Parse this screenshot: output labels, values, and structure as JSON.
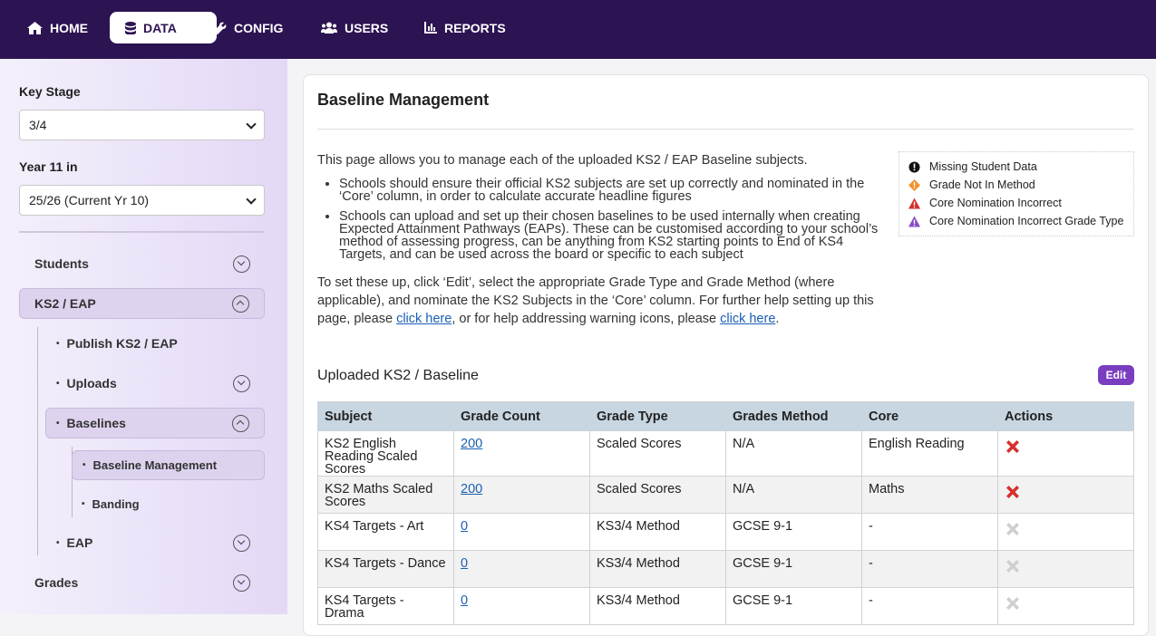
{
  "nav": [
    "HOME",
    "DATA",
    "CONFIG",
    "USERS",
    "REPORTS"
  ],
  "sidebar": {
    "key_stage_label": "Key Stage",
    "key_stage_value": "3/4",
    "year_label": "Year 11 in",
    "year_value": "25/26 (Current Yr 10)",
    "menu": [
      "Students",
      "KS2 / EAP",
      "Publish KS2 / EAP",
      "Uploads",
      "Baselines",
      "Baseline Management",
      "Banding",
      "EAP",
      "Grades"
    ]
  },
  "main": {
    "title": "Baseline Management",
    "intro": "This page allows you to manage each of the uploaded KS2 / EAP Baseline subjects.",
    "bullets": [
      "Schools should ensure their official KS2 subjects are set up correctly and nominated in the ‘Core’ column, in order to calculate accurate headline figures",
      "Schools can upload and set up their chosen baselines to be used internally when creating Expected Attainment Pathways (EAPs). These can be customised according to your school’s method of assessing progress, can be anything from KS2 starting points to End of KS4 Targets, and can be used across the board or specific to each subject"
    ],
    "help": [
      "To set these up, click ‘Edit’, select the appropriate Grade Type and Grade Method (where applicable), and nominate the KS2 Subjects in the ‘Core’ column. For further help setting up this page, please ",
      "click here",
      ", or for help addressing warning icons, please ",
      "click here",
      "."
    ],
    "legend": [
      "Missing Student Data",
      "Grade Not In Method",
      "Core Nomination Incorrect",
      "Core Nomination Incorrect Grade Type"
    ],
    "section_title": "Uploaded KS2 / Baseline",
    "edit": "Edit",
    "table": {
      "headers": [
        "Subject",
        "Grade Count",
        "Grade Type",
        "Grades Method",
        "Core",
        "Actions"
      ],
      "rows": [
        [
          "KS2 English Reading Scaled Scores",
          "200",
          "Scaled Scores",
          "N/A",
          "English Reading"
        ],
        [
          "KS2 Maths Scaled Scores",
          "200",
          "Scaled Scores",
          "N/A",
          "Maths"
        ],
        [
          "KS4 Targets - Art",
          "0",
          "KS3/4 Method",
          "GCSE 9-1",
          "-"
        ],
        [
          "KS4 Targets - Dance",
          "0",
          "KS3/4 Method",
          "GCSE 9-1",
          "-"
        ],
        [
          "KS4 Targets - Drama",
          "0",
          "KS3/4 Method",
          "GCSE 9-1",
          "-"
        ]
      ],
      "action_colors": [
        "#d62f2f",
        "#d62f2f",
        "#cfcfcf",
        "#cfcfcf",
        "#cfcfcf"
      ]
    }
  }
}
